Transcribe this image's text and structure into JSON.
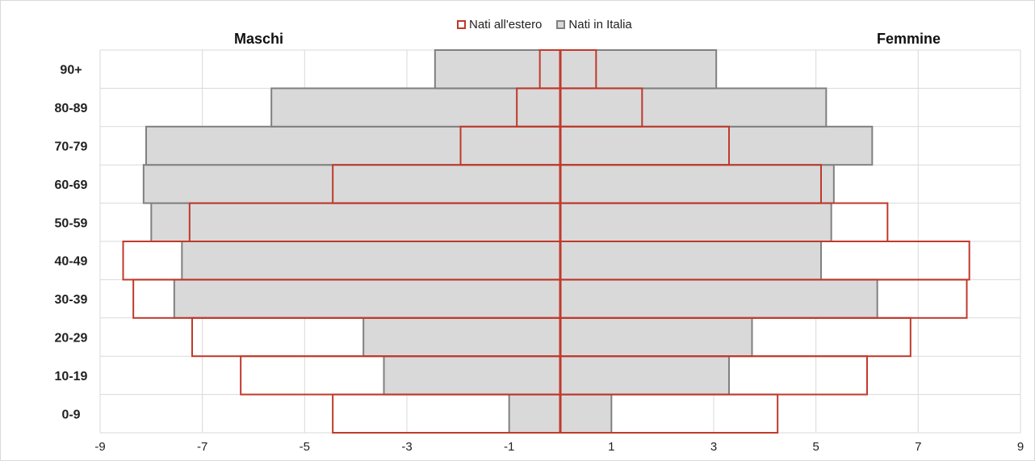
{
  "chart_data": {
    "type": "bar",
    "orientation": "horizontal",
    "subtype": "population-pyramid",
    "categories": [
      "0-9",
      "10-19",
      "20-29",
      "30-39",
      "40-49",
      "50-59",
      "60-69",
      "70-79",
      "80-89",
      "90+"
    ],
    "side_labels": {
      "left": "Maschi",
      "right": "Femmine"
    },
    "series": [
      {
        "name": "Nati in Italia",
        "male": [
          -1.0,
          -3.45,
          -3.85,
          -7.55,
          -7.4,
          -8.0,
          -8.15,
          -8.1,
          -5.65,
          -2.45
        ],
        "female": [
          1.0,
          3.3,
          3.75,
          6.2,
          5.1,
          5.3,
          5.35,
          6.1,
          5.2,
          3.05
        ]
      },
      {
        "name": "Nati all'estero",
        "male": [
          -4.45,
          -6.25,
          -7.2,
          -8.35,
          -8.55,
          -7.25,
          -4.45,
          -1.95,
          -0.85,
          -0.4
        ],
        "female": [
          4.25,
          6.0,
          6.85,
          7.95,
          8.0,
          6.4,
          5.1,
          3.3,
          1.6,
          0.7
        ]
      }
    ],
    "xlim": [
      -9,
      9
    ],
    "xticks": [
      "-9",
      "-7",
      "-5",
      "-3",
      "-1",
      "1",
      "3",
      "5",
      "7",
      "9"
    ],
    "grid": true,
    "legend_position": "top-center",
    "colors": {
      "italia_fill": "#d9d9d9",
      "italia_edge": "#808080",
      "estero_edge": "#c0392b",
      "zero_line": "#c0392b",
      "grid": "#d9d9d9"
    }
  }
}
